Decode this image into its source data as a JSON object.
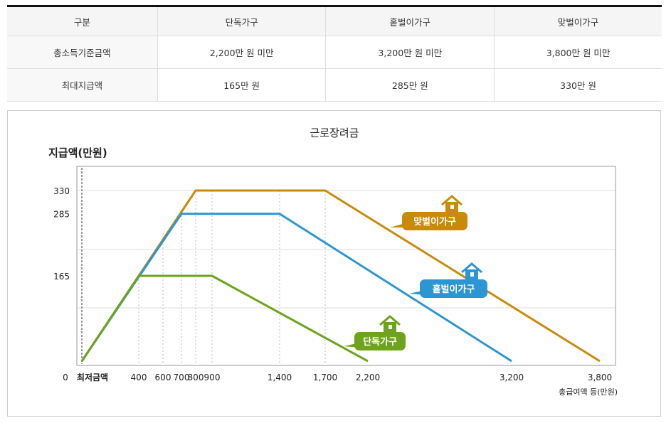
{
  "table": {
    "headers": [
      "구분",
      "단독가구",
      "홑벌이가구",
      "맞벌이가구"
    ],
    "rows": [
      [
        "총소득기준금액",
        "2,200만 원 미만",
        "3,200만 원 미만",
        "3,800만 원 미만"
      ],
      [
        "최대지급액",
        "165만 원",
        "285만 원",
        "330만 원"
      ]
    ]
  },
  "chart_data": {
    "type": "line",
    "title": "근로장려금",
    "ylabel": "지급액(만원)",
    "xlabel": "총급여액 등(만원)",
    "x_ticks": [
      {
        "v": 0,
        "label": "최저금액"
      },
      {
        "v": 400,
        "label": "400"
      },
      {
        "v": 600,
        "label": "600"
      },
      {
        "v": 700,
        "label": "700"
      },
      {
        "v": 800,
        "label": "800"
      },
      {
        "v": 900,
        "label": "900"
      },
      {
        "v": 1400,
        "label": "1,400"
      },
      {
        "v": 1700,
        "label": "1,700"
      },
      {
        "v": 2200,
        "label": "2,200"
      },
      {
        "v": 3200,
        "label": "3,200"
      },
      {
        "v": 3800,
        "label": "3,800"
      }
    ],
    "y_ticks": [
      {
        "v": 0,
        "label": "0"
      },
      {
        "v": 165,
        "label": "165"
      },
      {
        "v": 285,
        "label": "285"
      },
      {
        "v": 330,
        "label": "330"
      }
    ],
    "ylim": [
      0,
      330
    ],
    "series": [
      {
        "name": "맞벌이가구",
        "color": "#c98a0a",
        "points": [
          [
            0,
            0
          ],
          [
            800,
            330
          ],
          [
            1700,
            330
          ],
          [
            3800,
            0
          ]
        ]
      },
      {
        "name": "홑벌이가구",
        "color": "#2b96d3",
        "points": [
          [
            0,
            0
          ],
          [
            700,
            285
          ],
          [
            1400,
            285
          ],
          [
            3200,
            0
          ]
        ]
      },
      {
        "name": "단독가구",
        "color": "#6ea31c",
        "points": [
          [
            0,
            0
          ],
          [
            400,
            165
          ],
          [
            900,
            165
          ],
          [
            2200,
            0
          ]
        ]
      }
    ]
  }
}
